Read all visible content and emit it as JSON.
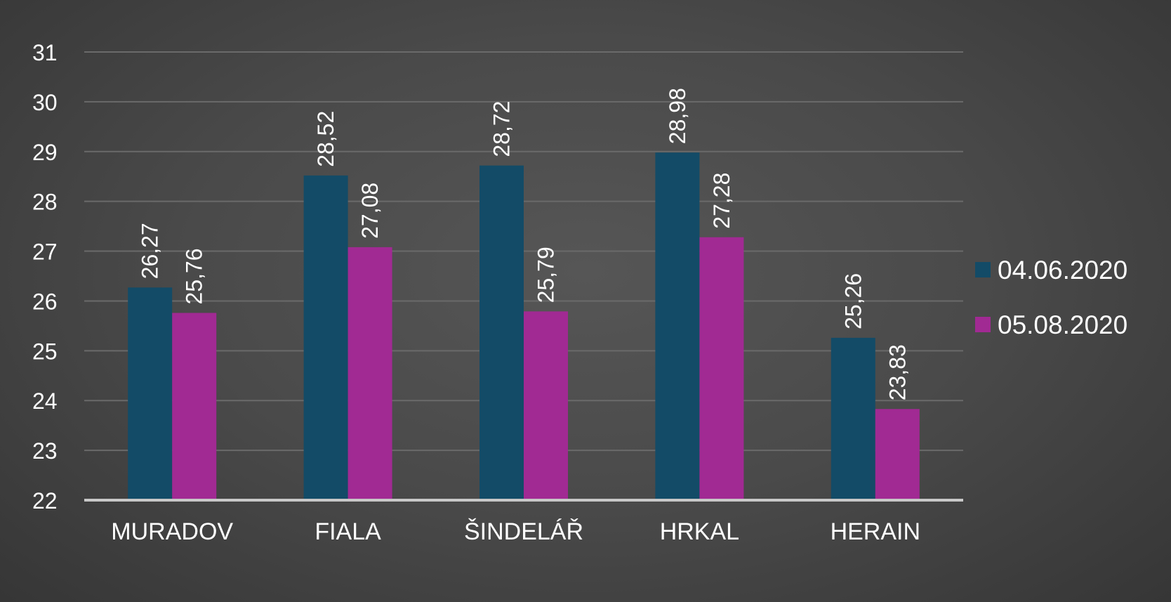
{
  "chart_data": {
    "type": "bar",
    "categories": [
      "MURADOV",
      "FIALA",
      "ŠINDELÁŘ",
      "HRKAL",
      "HERAIN"
    ],
    "series": [
      {
        "name": "04.06.2020",
        "values": [
          26.27,
          28.52,
          28.72,
          28.98,
          25.26
        ],
        "labels": [
          "26,27",
          "28,52",
          "28,72",
          "28,98",
          "25,26"
        ]
      },
      {
        "name": "05.08.2020",
        "values": [
          25.76,
          27.08,
          25.79,
          27.28,
          23.83
        ],
        "labels": [
          "25,76",
          "27,08",
          "25,79",
          "27,28",
          "23,83"
        ]
      }
    ],
    "y_ticks": [
      "22",
      "23",
      "24",
      "25",
      "26",
      "27",
      "28",
      "29",
      "30",
      "31"
    ],
    "ylim": [
      22,
      31
    ],
    "grid": true,
    "legend_position": "right",
    "title": "",
    "xlabel": "",
    "ylabel": "",
    "colors": {
      "series": [
        "#134b67",
        "#a12a93"
      ],
      "grid": "#6a6a6a",
      "axis": "#c8c8c8",
      "text": "#ffffff"
    }
  }
}
